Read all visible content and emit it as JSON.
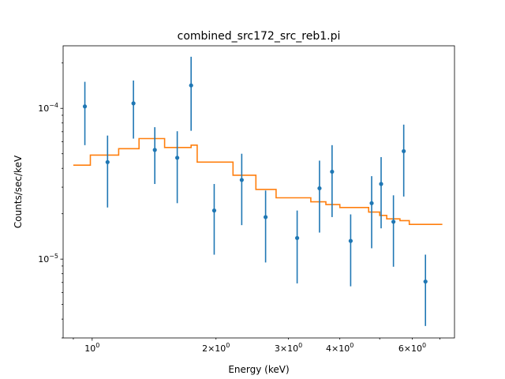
{
  "chart_data": {
    "type": "scatter",
    "title": "combined_src172_src_reb1.pi",
    "xlabel": "Energy (keV)",
    "ylabel": "Counts/sec/keV",
    "x_scale": "log",
    "y_scale": "log",
    "xlim": [
      0.85,
      7.6
    ],
    "ylim": [
      3e-06,
      0.00026
    ],
    "x_major_ticks": [
      {
        "value": 1,
        "label": "10^0",
        "base": "10",
        "exp": "0"
      }
    ],
    "x_minor_labels": [
      {
        "value": 2,
        "label": "2×10^0",
        "mant": "2×10",
        "exp": "0"
      },
      {
        "value": 3,
        "label": "3×10^0",
        "mant": "3×10",
        "exp": "0"
      },
      {
        "value": 4,
        "label": "4×10^0",
        "mant": "4×10",
        "exp": "0"
      },
      {
        "value": 6,
        "label": "6×10^0",
        "mant": "6×10",
        "exp": "0"
      }
    ],
    "y_major_ticks": [
      {
        "value": 1e-05,
        "label": "10^-5",
        "base": "10",
        "exp": "−5"
      },
      {
        "value": 0.0001,
        "label": "10^-4",
        "base": "10",
        "exp": "−4"
      }
    ],
    "grid": false,
    "colors": {
      "data": "#1f77b4",
      "model": "#ff7f0e",
      "axes": "#000000"
    },
    "series": [
      {
        "type": "errorbar",
        "points": [
          {
            "x": 0.96,
            "y": 0.000103,
            "ylo": 5.7e-05,
            "yhi": 0.00015
          },
          {
            "x": 1.09,
            "y": 4.4e-05,
            "ylo": 2.2e-05,
            "yhi": 6.6e-05
          },
          {
            "x": 1.26,
            "y": 0.000108,
            "ylo": 6.3e-05,
            "yhi": 0.000153
          },
          {
            "x": 1.42,
            "y": 5.3e-05,
            "ylo": 3.15e-05,
            "yhi": 7.5e-05
          },
          {
            "x": 1.61,
            "y": 4.7e-05,
            "ylo": 2.35e-05,
            "yhi": 7.05e-05
          },
          {
            "x": 1.74,
            "y": 0.000142,
            "ylo": 7.1e-05,
            "yhi": 0.00022
          },
          {
            "x": 1.98,
            "y": 2.1e-05,
            "ylo": 1.07e-05,
            "yhi": 3.15e-05
          },
          {
            "x": 2.31,
            "y": 3.35e-05,
            "ylo": 1.68e-05,
            "yhi": 5e-05
          },
          {
            "x": 2.64,
            "y": 1.9e-05,
            "ylo": 9.5e-06,
            "yhi": 2.85e-05
          },
          {
            "x": 3.15,
            "y": 1.38e-05,
            "ylo": 6.9e-06,
            "yhi": 2.1e-05
          },
          {
            "x": 3.57,
            "y": 2.95e-05,
            "ylo": 1.5e-05,
            "yhi": 4.5e-05
          },
          {
            "x": 3.83,
            "y": 3.8e-05,
            "ylo": 1.9e-05,
            "yhi": 5.7e-05
          },
          {
            "x": 4.25,
            "y": 1.32e-05,
            "ylo": 6.6e-06,
            "yhi": 1.98e-05
          },
          {
            "x": 4.78,
            "y": 2.35e-05,
            "ylo": 1.18e-05,
            "yhi": 3.55e-05
          },
          {
            "x": 5.04,
            "y": 3.15e-05,
            "ylo": 1.6e-05,
            "yhi": 4.75e-05
          },
          {
            "x": 5.4,
            "y": 1.77e-05,
            "ylo": 8.9e-06,
            "yhi": 2.65e-05
          },
          {
            "x": 5.72,
            "y": 5.2e-05,
            "ylo": 2.6e-05,
            "yhi": 7.8e-05
          },
          {
            "x": 6.46,
            "y": 7.1e-06,
            "ylo": 3.6e-06,
            "yhi": 1.07e-05
          }
        ]
      },
      {
        "type": "step",
        "edges": [
          0.9,
          0.99,
          1.16,
          1.3,
          1.5,
          1.68,
          1.74,
          1.8,
          2.2,
          2.5,
          2.8,
          3.4,
          3.7,
          4.0,
          4.7,
          5.0,
          5.2,
          5.6,
          5.9,
          7.1
        ],
        "values": [
          4.2e-05,
          4.9e-05,
          5.4e-05,
          6.3e-05,
          5.5e-05,
          5.5e-05,
          5.7e-05,
          4.4e-05,
          3.6e-05,
          2.9e-05,
          2.55e-05,
          2.4e-05,
          2.3e-05,
          2.2e-05,
          2.05e-05,
          1.95e-05,
          1.85e-05,
          1.8e-05,
          1.7e-05
        ]
      }
    ]
  }
}
